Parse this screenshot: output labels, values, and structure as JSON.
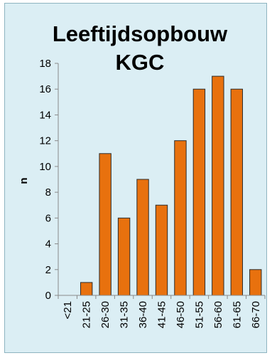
{
  "chart_data": {
    "type": "bar",
    "title_lines": [
      "Leeftijdsopbouw",
      "KGC"
    ],
    "xlabel": "",
    "ylabel": "n",
    "categories": [
      "<21",
      "21-25",
      "26-30",
      "31-35",
      "36-40",
      "41-45",
      "46-50",
      "51-55",
      "56-60",
      "61-65",
      "66-70"
    ],
    "values": [
      0,
      1,
      11,
      6,
      9,
      7,
      12,
      16,
      17,
      16,
      2
    ],
    "ylim": [
      0,
      18
    ],
    "yticks": [
      0,
      2,
      4,
      6,
      8,
      10,
      12,
      14,
      16,
      18
    ],
    "grid": false,
    "legend": "none",
    "colors": {
      "bar_fill": "#e8710e",
      "bar_stroke": "#2b2b2b",
      "background": "#dbeef4",
      "axis": "#8a8a8a"
    }
  }
}
